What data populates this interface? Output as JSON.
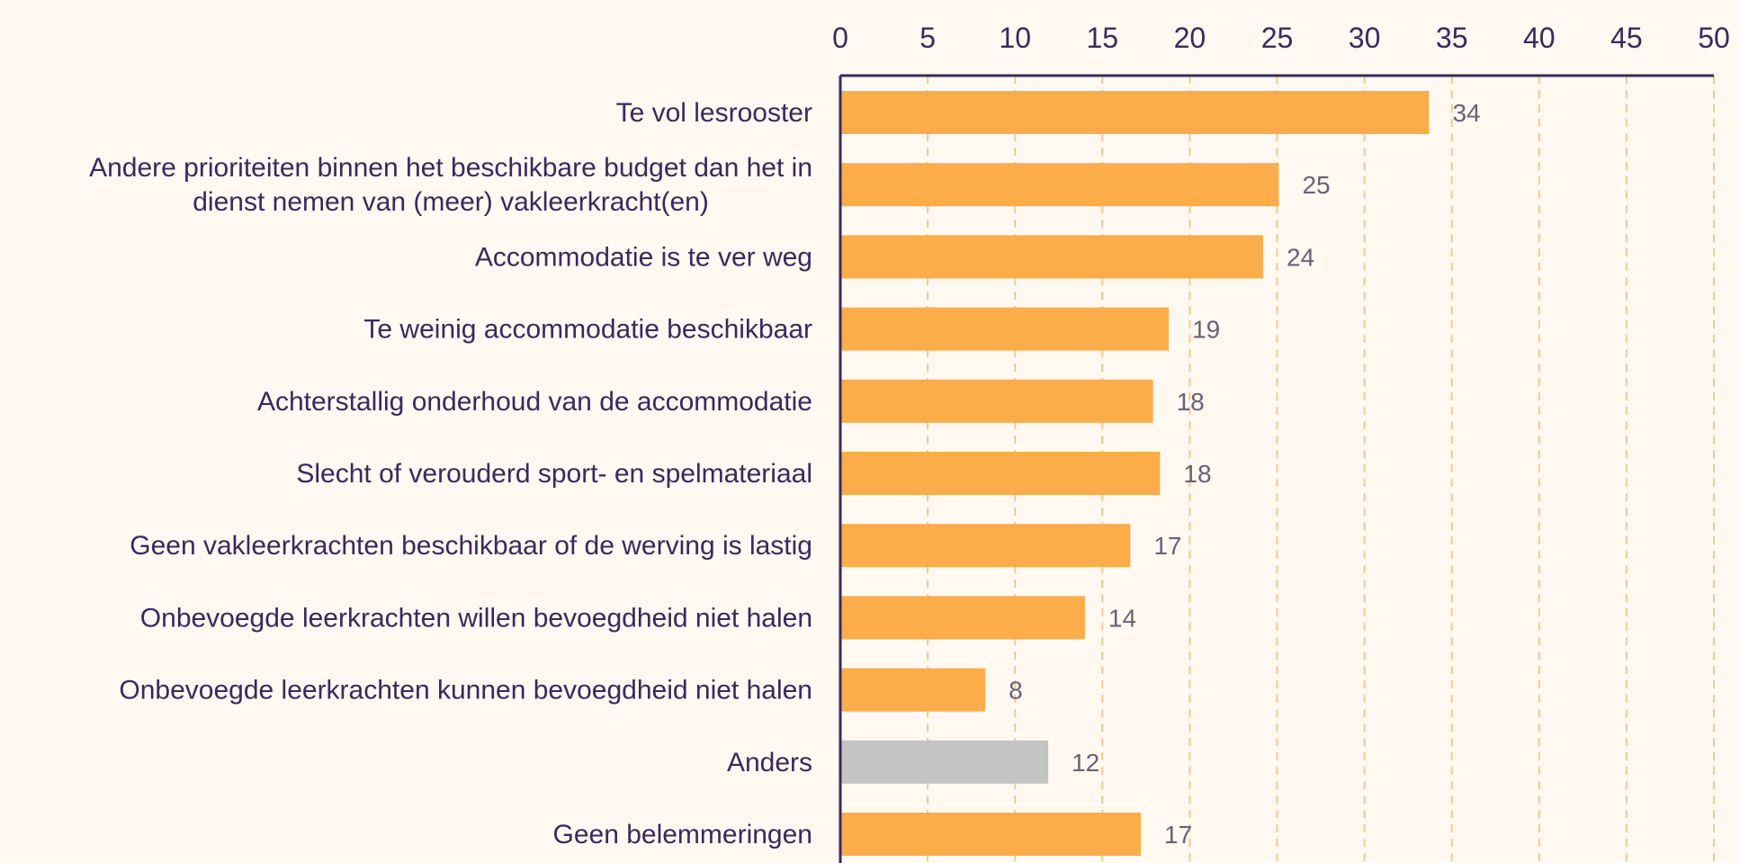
{
  "chart_data": {
    "type": "bar",
    "orientation": "horizontal",
    "categories": [
      [
        "Te vol lesrooster"
      ],
      [
        "Andere prioriteiten binnen het beschikbare budget dan het in",
        "dienst nemen van (meer) vakleerkracht(en)"
      ],
      [
        "Accommodatie is te ver weg"
      ],
      [
        "Te weinig accommodatie beschikbaar"
      ],
      [
        "Achterstallig onderhoud van de accommodatie"
      ],
      [
        "Slecht of verouderd sport- en spelmateriaal"
      ],
      [
        "Geen vakleerkrachten beschikbaar of de werving is lastig"
      ],
      [
        "Onbevoegde leerkrachten willen bevoegdheid niet halen"
      ],
      [
        "Onbevoegde leerkrachten kunnen bevoegdheid niet halen"
      ],
      [
        "Anders"
      ],
      [
        "Geen belemmeringen"
      ]
    ],
    "values": [
      34,
      25,
      24,
      19,
      18,
      18,
      17,
      14,
      8,
      12,
      17
    ],
    "bar_values_precise": [
      33.7,
      25.1,
      24.2,
      18.8,
      17.9,
      18.3,
      16.6,
      14.0,
      8.3,
      11.9,
      17.2
    ],
    "bar_colors": [
      "#fdac4a",
      "#fdac4a",
      "#fdac4a",
      "#fdac4a",
      "#fdac4a",
      "#fdac4a",
      "#fdac4a",
      "#fdac4a",
      "#fdac4a",
      "#c4c4c2",
      "#fdac4a"
    ],
    "xlim": [
      0,
      50
    ],
    "xticks": [
      0,
      5,
      10,
      15,
      20,
      25,
      30,
      35,
      40,
      45,
      50
    ],
    "x_axis_position": "top",
    "grid": true,
    "title": "",
    "xlabel": "",
    "ylabel": "",
    "colors": {
      "bar": "#fdac4a",
      "bar_other": "#c4c4c2",
      "grid": "#f7c98a",
      "axis": "#3a2a5a",
      "text": "#3a2a5a",
      "data_label": "#6a6272",
      "background": "#fff9f2"
    }
  }
}
